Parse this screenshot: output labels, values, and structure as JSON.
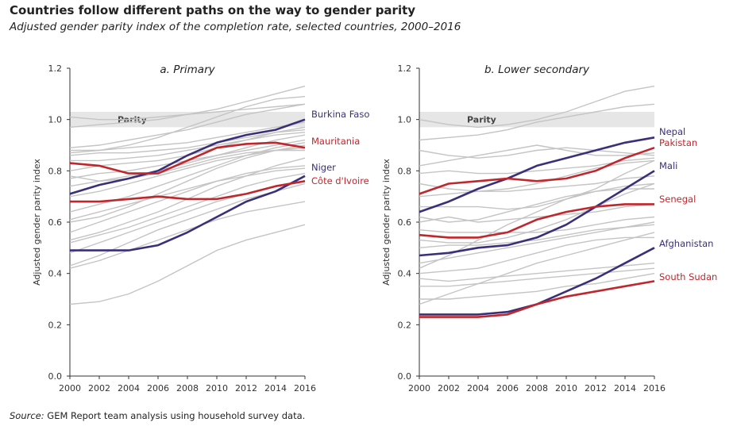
{
  "title": "Countries follow different paths on the way to gender parity",
  "subtitle": "Adjusted gender parity index of the completion rate, selected countries, 2000–2016",
  "source_label": "Source:",
  "source_text": " GEM Report team analysis using household survey data.",
  "colors": {
    "blue": "#3b2f7a",
    "red": "#c0272d",
    "grey": "#c4c4c4",
    "parity_band": "#e6e6e6"
  },
  "chart_data": [
    {
      "type": "line",
      "title": "a. Primary",
      "ylabel": "Adjusted gender parity index",
      "ylim": [
        0,
        1.2
      ],
      "yticks": [
        "0.0",
        "0.2",
        "0.4",
        "0.6",
        "0.8",
        "1.0",
        "1.2"
      ],
      "xlim": [
        2000,
        2016
      ],
      "xticks": [
        "2000",
        "2002",
        "2004",
        "2006",
        "2008",
        "2010",
        "2012",
        "2014",
        "2016"
      ],
      "parity_label": "Parity",
      "parity_band": [
        0.97,
        1.03
      ],
      "x": [
        2000,
        2002,
        2004,
        2006,
        2008,
        2010,
        2012,
        2014,
        2016
      ],
      "highlighted": [
        {
          "name": "Burkina Faso",
          "color": "blue",
          "values": [
            0.71,
            0.745,
            0.77,
            0.8,
            0.86,
            0.91,
            0.94,
            0.96,
            1.0
          ]
        },
        {
          "name": "Mauritania",
          "color": "red",
          "values": [
            0.83,
            0.82,
            0.79,
            0.79,
            0.84,
            0.89,
            0.905,
            0.91,
            0.89
          ]
        },
        {
          "name": "Niger",
          "color": "blue",
          "values": [
            0.49,
            0.49,
            0.49,
            0.51,
            0.56,
            0.62,
            0.68,
            0.72,
            0.78
          ]
        },
        {
          "name": "Côte d'Ivoire",
          "color": "red",
          "values": [
            0.68,
            0.68,
            0.69,
            0.7,
            0.69,
            0.69,
            0.71,
            0.74,
            0.76
          ]
        }
      ],
      "background": [
        [
          0.28,
          0.29,
          0.32,
          0.37,
          0.43,
          0.49,
          0.53,
          0.56,
          0.59
        ],
        [
          0.43,
          0.47,
          0.52,
          0.57,
          0.61,
          0.65,
          0.69,
          0.72,
          0.75
        ],
        [
          0.42,
          0.45,
          0.49,
          0.53,
          0.57,
          0.61,
          0.64,
          0.66,
          0.68
        ],
        [
          0.48,
          0.52,
          0.56,
          0.6,
          0.64,
          0.68,
          0.71,
          0.74,
          0.76
        ],
        [
          0.52,
          0.55,
          0.58,
          0.62,
          0.66,
          0.7,
          0.74,
          0.77,
          0.79
        ],
        [
          0.56,
          0.6,
          0.64,
          0.68,
          0.72,
          0.76,
          0.79,
          0.81,
          0.82
        ],
        [
          0.61,
          0.64,
          0.67,
          0.7,
          0.73,
          0.76,
          0.78,
          0.8,
          0.81
        ],
        [
          0.64,
          0.67,
          0.7,
          0.74,
          0.78,
          0.82,
          0.86,
          0.89,
          0.91
        ],
        [
          0.7,
          0.72,
          0.75,
          0.78,
          0.81,
          0.84,
          0.86,
          0.88,
          0.89
        ],
        [
          0.74,
          0.76,
          0.78,
          0.8,
          0.83,
          0.86,
          0.88,
          0.9,
          0.92
        ],
        [
          0.77,
          0.79,
          0.8,
          0.82,
          0.84,
          0.86,
          0.89,
          0.92,
          0.94
        ],
        [
          0.8,
          0.82,
          0.83,
          0.84,
          0.86,
          0.89,
          0.92,
          0.95,
          0.97
        ],
        [
          0.84,
          0.84,
          0.85,
          0.86,
          0.88,
          0.9,
          0.92,
          0.94,
          0.95
        ],
        [
          0.86,
          0.87,
          0.87,
          0.88,
          0.89,
          0.91,
          0.93,
          0.95,
          0.96
        ],
        [
          0.88,
          0.88,
          0.89,
          0.9,
          0.91,
          0.93,
          0.95,
          0.97,
          0.99
        ],
        [
          0.89,
          0.9,
          0.92,
          0.94,
          0.96,
          0.99,
          1.02,
          1.04,
          1.06
        ],
        [
          0.87,
          0.88,
          0.9,
          0.93,
          0.97,
          1.01,
          1.05,
          1.08,
          1.09
        ],
        [
          0.97,
          0.98,
          0.99,
          1.0,
          1.02,
          1.04,
          1.07,
          1.1,
          1.13
        ],
        [
          1.01,
          1.0,
          1.0,
          1.01,
          1.02,
          1.03,
          1.04,
          1.05,
          1.06
        ],
        [
          0.78,
          0.76,
          0.77,
          0.79,
          0.82,
          0.85,
          0.87,
          0.88,
          0.88
        ],
        [
          0.6,
          0.62,
          0.66,
          0.71,
          0.76,
          0.81,
          0.85,
          0.88,
          0.9
        ],
        [
          0.53,
          0.56,
          0.6,
          0.64,
          0.69,
          0.74,
          0.78,
          0.82,
          0.85
        ]
      ]
    },
    {
      "type": "line",
      "title": "b. Lower secondary",
      "ylabel": "Adjusted gender parity index",
      "ylim": [
        0,
        1.2
      ],
      "yticks": [
        "0.0",
        "0.2",
        "0.4",
        "0.6",
        "0.8",
        "1.0",
        "1.2"
      ],
      "xlim": [
        2000,
        2016
      ],
      "xticks": [
        "2000",
        "2002",
        "2004",
        "2006",
        "2008",
        "2010",
        "2012",
        "2014",
        "2016"
      ],
      "parity_label": "Parity",
      "parity_band": [
        0.97,
        1.03
      ],
      "x": [
        2000,
        2002,
        2004,
        2006,
        2008,
        2010,
        2012,
        2014,
        2016
      ],
      "highlighted": [
        {
          "name": "Nepal",
          "color": "blue",
          "values": [
            0.64,
            0.68,
            0.73,
            0.77,
            0.82,
            0.85,
            0.88,
            0.91,
            0.93
          ]
        },
        {
          "name": "Pakistan",
          "color": "red",
          "values": [
            0.71,
            0.75,
            0.76,
            0.77,
            0.76,
            0.77,
            0.8,
            0.85,
            0.89
          ]
        },
        {
          "name": "Mali",
          "color": "blue",
          "values": [
            0.47,
            0.48,
            0.5,
            0.51,
            0.54,
            0.59,
            0.66,
            0.73,
            0.8
          ]
        },
        {
          "name": "Senegal",
          "color": "red",
          "values": [
            0.55,
            0.54,
            0.54,
            0.56,
            0.61,
            0.64,
            0.66,
            0.67,
            0.67
          ]
        },
        {
          "name": "Afghanistan",
          "color": "blue",
          "values": [
            0.24,
            0.24,
            0.24,
            0.25,
            0.28,
            0.33,
            0.38,
            0.44,
            0.5
          ]
        },
        {
          "name": "South Sudan",
          "color": "red",
          "values": [
            0.23,
            0.23,
            0.23,
            0.24,
            0.28,
            0.31,
            0.33,
            0.35,
            0.37
          ]
        }
      ],
      "background": [
        [
          1.0,
          0.98,
          0.97,
          0.98,
          1.0,
          1.03,
          1.07,
          1.11,
          1.13
        ],
        [
          0.92,
          0.93,
          0.94,
          0.96,
          0.99,
          1.01,
          1.03,
          1.05,
          1.06
        ],
        [
          0.88,
          0.86,
          0.85,
          0.86,
          0.88,
          0.89,
          0.88,
          0.87,
          0.86
        ],
        [
          0.82,
          0.84,
          0.86,
          0.88,
          0.9,
          0.88,
          0.86,
          0.86,
          0.87
        ],
        [
          0.79,
          0.8,
          0.79,
          0.79,
          0.8,
          0.81,
          0.82,
          0.84,
          0.85
        ],
        [
          0.75,
          0.73,
          0.72,
          0.73,
          0.75,
          0.78,
          0.81,
          0.83,
          0.84
        ],
        [
          0.7,
          0.71,
          0.72,
          0.72,
          0.73,
          0.74,
          0.75,
          0.77,
          0.78
        ],
        [
          0.66,
          0.66,
          0.66,
          0.65,
          0.66,
          0.69,
          0.73,
          0.79,
          0.84
        ],
        [
          0.62,
          0.6,
          0.61,
          0.64,
          0.67,
          0.7,
          0.72,
          0.73,
          0.73
        ],
        [
          0.6,
          0.62,
          0.6,
          0.61,
          0.62,
          0.63,
          0.64,
          0.66,
          0.67
        ],
        [
          0.57,
          0.56,
          0.56,
          0.56,
          0.56,
          0.57,
          0.59,
          0.61,
          0.62
        ],
        [
          0.53,
          0.52,
          0.52,
          0.54,
          0.57,
          0.61,
          0.66,
          0.71,
          0.75
        ],
        [
          0.5,
          0.51,
          0.51,
          0.52,
          0.53,
          0.55,
          0.57,
          0.58,
          0.59
        ],
        [
          0.44,
          0.46,
          0.48,
          0.5,
          0.52,
          0.54,
          0.56,
          0.58,
          0.6
        ],
        [
          0.4,
          0.41,
          0.42,
          0.45,
          0.48,
          0.51,
          0.53,
          0.54,
          0.54
        ],
        [
          0.38,
          0.37,
          0.38,
          0.39,
          0.4,
          0.41,
          0.42,
          0.43,
          0.44
        ],
        [
          0.35,
          0.35,
          0.36,
          0.37,
          0.38,
          0.39,
          0.4,
          0.41,
          0.42
        ],
        [
          0.28,
          0.32,
          0.36,
          0.4,
          0.44,
          0.47,
          0.5,
          0.53,
          0.56
        ],
        [
          0.3,
          0.3,
          0.31,
          0.32,
          0.33,
          0.35,
          0.36,
          0.38,
          0.4
        ],
        [
          0.42,
          0.47,
          0.53,
          0.59,
          0.64,
          0.69,
          0.72,
          0.74,
          0.75
        ]
      ]
    }
  ]
}
